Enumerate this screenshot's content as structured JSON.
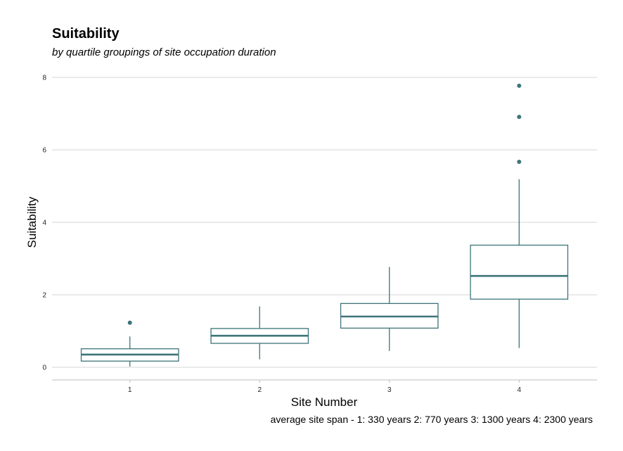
{
  "chart_data": {
    "type": "boxplot",
    "title": "Suitability",
    "subtitle": "by quartile groupings of site occupation duration",
    "xlabel": "Site Number",
    "ylabel": "Suitability",
    "caption": "average site span - 1: 330 years 2: 770 years 3: 1300 years 4: 2300 years",
    "ylim": [
      -0.35,
      8.35
    ],
    "y_ticks": [
      0,
      2,
      4,
      6,
      8
    ],
    "y_tick_labels": [
      "0",
      "2",
      "4",
      "6",
      "8"
    ],
    "categories": [
      "1",
      "2",
      "3",
      "4"
    ],
    "grid": "horizontal",
    "color": "#3d7479",
    "boxes": [
      {
        "category": "1",
        "whisker_low": 0.02,
        "q1": 0.17,
        "median": 0.35,
        "q3": 0.51,
        "whisker_high": 0.85,
        "outliers": [
          1.23
        ]
      },
      {
        "category": "2",
        "whisker_low": 0.22,
        "q1": 0.66,
        "median": 0.87,
        "q3": 1.07,
        "whisker_high": 1.68,
        "outliers": []
      },
      {
        "category": "3",
        "whisker_low": 0.45,
        "q1": 1.08,
        "median": 1.4,
        "q3": 1.76,
        "whisker_high": 2.77,
        "outliers": []
      },
      {
        "category": "4",
        "whisker_low": 0.53,
        "q1": 1.88,
        "median": 2.52,
        "q3": 3.37,
        "whisker_high": 5.19,
        "outliers": [
          5.67,
          6.91,
          7.77
        ]
      }
    ]
  }
}
